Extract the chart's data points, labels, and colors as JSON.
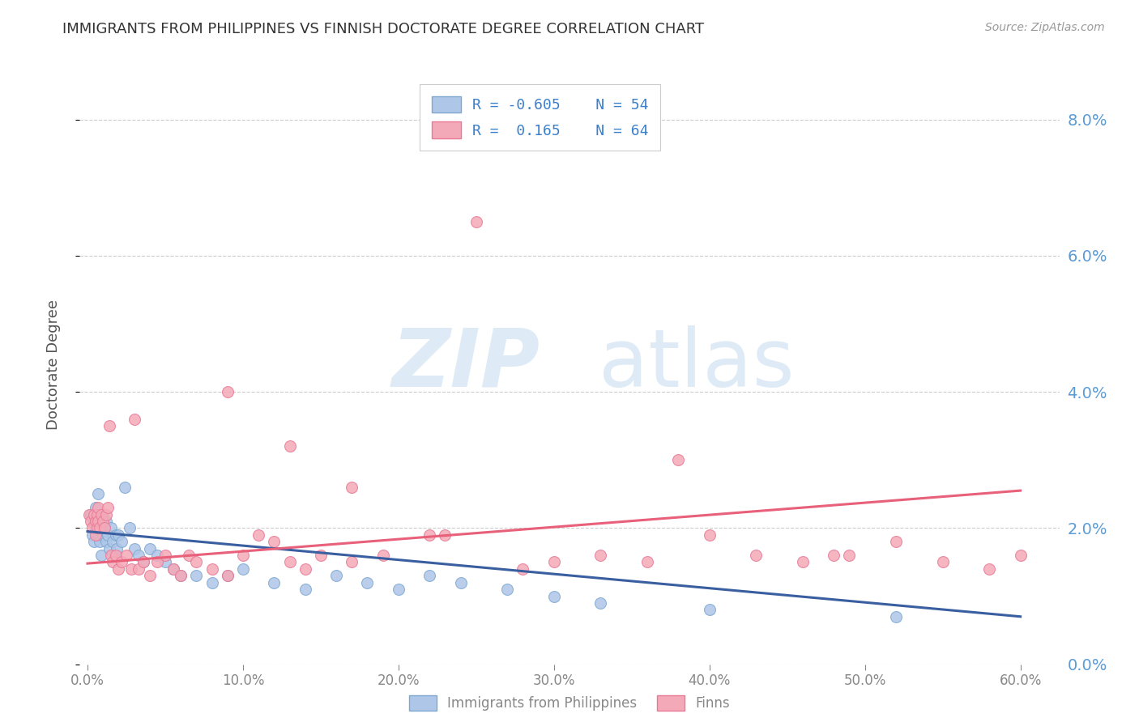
{
  "title": "IMMIGRANTS FROM PHILIPPINES VS FINNISH DOCTORATE DEGREE CORRELATION CHART",
  "source": "Source: ZipAtlas.com",
  "ylabel": "Doctorate Degree",
  "x_ticks": [
    0.0,
    0.1,
    0.2,
    0.3,
    0.4,
    0.5,
    0.6
  ],
  "x_tick_labels": [
    "0.0%",
    "10.0%",
    "20.0%",
    "30.0%",
    "40.0%",
    "50.0%",
    "60.0%"
  ],
  "y_ticks": [
    0.0,
    0.02,
    0.04,
    0.06,
    0.08
  ],
  "y_tick_labels": [
    "0.0%",
    "2.0%",
    "4.0%",
    "6.0%",
    "8.0%"
  ],
  "R_blue": -0.605,
  "N_blue": 54,
  "R_pink": 0.165,
  "N_pink": 64,
  "blue_scatter_x": [
    0.002,
    0.003,
    0.004,
    0.004,
    0.005,
    0.005,
    0.006,
    0.006,
    0.007,
    0.007,
    0.008,
    0.008,
    0.009,
    0.009,
    0.01,
    0.01,
    0.011,
    0.012,
    0.012,
    0.013,
    0.014,
    0.015,
    0.016,
    0.017,
    0.018,
    0.019,
    0.02,
    0.022,
    0.024,
    0.027,
    0.03,
    0.033,
    0.036,
    0.04,
    0.045,
    0.05,
    0.055,
    0.06,
    0.07,
    0.08,
    0.09,
    0.1,
    0.12,
    0.14,
    0.16,
    0.18,
    0.2,
    0.22,
    0.24,
    0.27,
    0.3,
    0.33,
    0.4,
    0.52
  ],
  "blue_scatter_y": [
    0.022,
    0.019,
    0.021,
    0.018,
    0.02,
    0.023,
    0.022,
    0.021,
    0.025,
    0.019,
    0.02,
    0.018,
    0.021,
    0.016,
    0.019,
    0.022,
    0.02,
    0.018,
    0.021,
    0.019,
    0.017,
    0.02,
    0.018,
    0.016,
    0.019,
    0.017,
    0.019,
    0.018,
    0.026,
    0.02,
    0.017,
    0.016,
    0.015,
    0.017,
    0.016,
    0.015,
    0.014,
    0.013,
    0.013,
    0.012,
    0.013,
    0.014,
    0.012,
    0.011,
    0.013,
    0.012,
    0.011,
    0.013,
    0.012,
    0.011,
    0.01,
    0.009,
    0.008,
    0.007
  ],
  "pink_scatter_x": [
    0.001,
    0.002,
    0.003,
    0.004,
    0.005,
    0.005,
    0.006,
    0.006,
    0.007,
    0.007,
    0.008,
    0.009,
    0.01,
    0.011,
    0.012,
    0.013,
    0.014,
    0.015,
    0.016,
    0.018,
    0.02,
    0.022,
    0.025,
    0.028,
    0.03,
    0.033,
    0.036,
    0.04,
    0.045,
    0.05,
    0.055,
    0.06,
    0.065,
    0.07,
    0.08,
    0.09,
    0.1,
    0.11,
    0.12,
    0.13,
    0.14,
    0.15,
    0.17,
    0.19,
    0.22,
    0.25,
    0.28,
    0.3,
    0.33,
    0.36,
    0.4,
    0.43,
    0.46,
    0.49,
    0.52,
    0.55,
    0.58,
    0.6,
    0.23,
    0.38,
    0.09,
    0.13,
    0.17,
    0.48
  ],
  "pink_scatter_y": [
    0.022,
    0.021,
    0.02,
    0.022,
    0.019,
    0.021,
    0.022,
    0.02,
    0.021,
    0.023,
    0.02,
    0.022,
    0.021,
    0.02,
    0.022,
    0.023,
    0.035,
    0.016,
    0.015,
    0.016,
    0.014,
    0.015,
    0.016,
    0.014,
    0.036,
    0.014,
    0.015,
    0.013,
    0.015,
    0.016,
    0.014,
    0.013,
    0.016,
    0.015,
    0.014,
    0.013,
    0.016,
    0.019,
    0.018,
    0.015,
    0.014,
    0.016,
    0.015,
    0.016,
    0.019,
    0.065,
    0.014,
    0.015,
    0.016,
    0.015,
    0.019,
    0.016,
    0.015,
    0.016,
    0.018,
    0.015,
    0.014,
    0.016,
    0.019,
    0.03,
    0.04,
    0.032,
    0.026,
    0.016
  ],
  "blue_line_x": [
    0.0,
    0.6
  ],
  "blue_line_y_start": 0.0195,
  "blue_line_y_end": 0.007,
  "pink_line_x": [
    0.0,
    0.6
  ],
  "pink_line_y_start": 0.0148,
  "pink_line_y_end": 0.0255,
  "watermark_zip": "ZIP",
  "watermark_atlas": "atlas",
  "bg_color": "#ffffff",
  "grid_color": "#cccccc",
  "title_color": "#333333",
  "axis_label_color": "#555555",
  "tick_color_right": "#5b9bd5",
  "scatter_blue_color": "#aec6e8",
  "scatter_blue_edge": "#7fa8d0",
  "scatter_pink_color": "#f4a9b8",
  "scatter_pink_edge": "#e87a96",
  "trend_blue_color": "#3a5fa0",
  "trend_pink_color": "#e8607a",
  "ylim": [
    0.0,
    0.088
  ],
  "xlim": [
    -0.005,
    0.625
  ]
}
